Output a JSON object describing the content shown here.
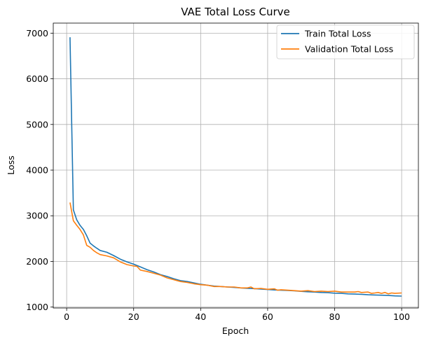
{
  "chart_data": {
    "type": "line",
    "title": "VAE Total Loss Curve",
    "xlabel": "Epoch",
    "ylabel": "Loss",
    "xlim": [
      -4,
      105
    ],
    "ylim": [
      980,
      7220
    ],
    "xticks": [
      0,
      20,
      40,
      60,
      80,
      100
    ],
    "yticks": [
      1000,
      2000,
      3000,
      4000,
      5000,
      6000,
      7000
    ],
    "grid": true,
    "legend_position": "top-right",
    "series": [
      {
        "name": "Train Total Loss",
        "color": "#1f77b4",
        "points": [
          [
            1,
            6910
          ],
          [
            2,
            3130
          ],
          [
            3,
            2910
          ],
          [
            4,
            2790
          ],
          [
            5,
            2700
          ],
          [
            6,
            2560
          ],
          [
            7,
            2400
          ],
          [
            8,
            2340
          ],
          [
            9,
            2290
          ],
          [
            10,
            2240
          ],
          [
            12,
            2200
          ],
          [
            14,
            2130
          ],
          [
            16,
            2050
          ],
          [
            18,
            1990
          ],
          [
            20,
            1940
          ],
          [
            22,
            1880
          ],
          [
            24,
            1820
          ],
          [
            26,
            1770
          ],
          [
            28,
            1710
          ],
          [
            30,
            1670
          ],
          [
            32,
            1620
          ],
          [
            34,
            1580
          ],
          [
            36,
            1560
          ],
          [
            38,
            1530
          ],
          [
            40,
            1500
          ],
          [
            42,
            1480
          ],
          [
            44,
            1460
          ],
          [
            46,
            1450
          ],
          [
            48,
            1440
          ],
          [
            50,
            1430
          ],
          [
            52,
            1420
          ],
          [
            54,
            1410
          ],
          [
            56,
            1405
          ],
          [
            58,
            1395
          ],
          [
            60,
            1385
          ],
          [
            62,
            1375
          ],
          [
            64,
            1370
          ],
          [
            66,
            1365
          ],
          [
            68,
            1355
          ],
          [
            70,
            1345
          ],
          [
            72,
            1335
          ],
          [
            74,
            1330
          ],
          [
            76,
            1320
          ],
          [
            78,
            1315
          ],
          [
            80,
            1305
          ],
          [
            82,
            1300
          ],
          [
            84,
            1290
          ],
          [
            86,
            1285
          ],
          [
            88,
            1280
          ],
          [
            90,
            1270
          ],
          [
            92,
            1265
          ],
          [
            94,
            1260
          ],
          [
            96,
            1255
          ],
          [
            98,
            1245
          ],
          [
            100,
            1240
          ]
        ]
      },
      {
        "name": "Validation Total Loss",
        "color": "#ff7f0e",
        "points": [
          [
            1,
            3290
          ],
          [
            2,
            2890
          ],
          [
            3,
            2790
          ],
          [
            4,
            2700
          ],
          [
            5,
            2580
          ],
          [
            6,
            2350
          ],
          [
            7,
            2310
          ],
          [
            8,
            2240
          ],
          [
            9,
            2190
          ],
          [
            10,
            2150
          ],
          [
            12,
            2120
          ],
          [
            14,
            2080
          ],
          [
            16,
            1990
          ],
          [
            18,
            1930
          ],
          [
            20,
            1900
          ],
          [
            21,
            1890
          ],
          [
            22,
            1810
          ],
          [
            24,
            1780
          ],
          [
            26,
            1740
          ],
          [
            28,
            1700
          ],
          [
            30,
            1640
          ],
          [
            32,
            1600
          ],
          [
            34,
            1560
          ],
          [
            36,
            1540
          ],
          [
            38,
            1510
          ],
          [
            40,
            1490
          ],
          [
            42,
            1480
          ],
          [
            44,
            1450
          ],
          [
            46,
            1450
          ],
          [
            48,
            1440
          ],
          [
            50,
            1440
          ],
          [
            52,
            1420
          ],
          [
            54,
            1420
          ],
          [
            55,
            1440
          ],
          [
            56,
            1400
          ],
          [
            58,
            1410
          ],
          [
            60,
            1390
          ],
          [
            62,
            1400
          ],
          [
            63,
            1370
          ],
          [
            64,
            1380
          ],
          [
            66,
            1370
          ],
          [
            68,
            1360
          ],
          [
            70,
            1350
          ],
          [
            72,
            1360
          ],
          [
            74,
            1340
          ],
          [
            76,
            1350
          ],
          [
            78,
            1340
          ],
          [
            80,
            1350
          ],
          [
            82,
            1330
          ],
          [
            84,
            1330
          ],
          [
            86,
            1330
          ],
          [
            87,
            1340
          ],
          [
            88,
            1320
          ],
          [
            90,
            1330
          ],
          [
            91,
            1300
          ],
          [
            92,
            1310
          ],
          [
            93,
            1320
          ],
          [
            94,
            1300
          ],
          [
            95,
            1320
          ],
          [
            96,
            1290
          ],
          [
            97,
            1310
          ],
          [
            98,
            1300
          ],
          [
            100,
            1310
          ]
        ]
      }
    ]
  }
}
